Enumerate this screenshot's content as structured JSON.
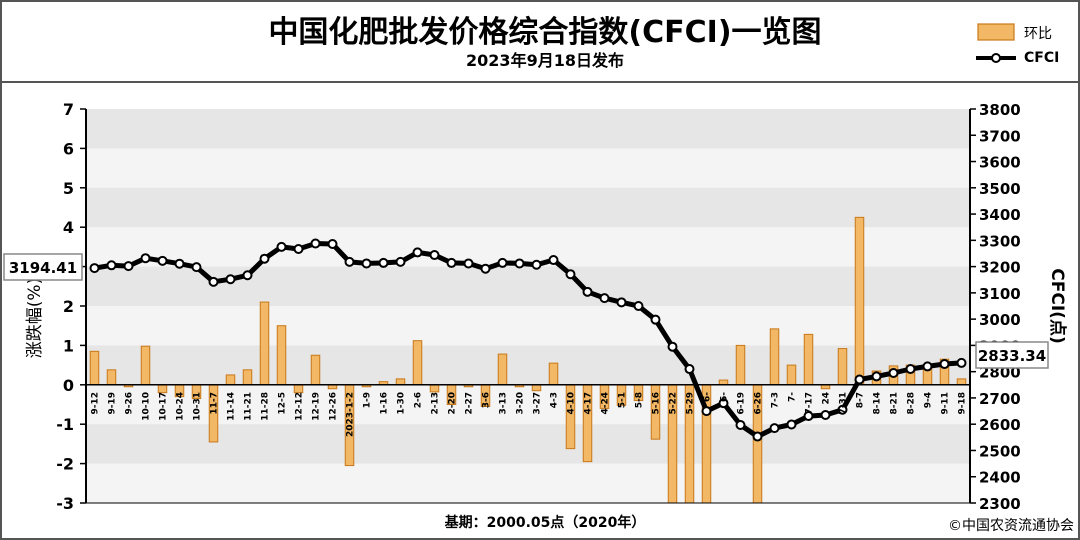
{
  "header": {
    "title": "中国化肥批发价格综合指数(CFCI)一览图",
    "subtitle": "2023年9月18日发布"
  },
  "footer": {
    "base_note": "基期：2000.05点（2020年）",
    "copyright": "©中国农资流通协会"
  },
  "legend": {
    "bar_label": "环比",
    "line_label": "CFCI"
  },
  "colors": {
    "bar_fill": "#f2b866",
    "bar_stroke": "#c87818",
    "line": "#000000",
    "plot_bg": "#e6e6e6",
    "band_light": "#f4f4f4"
  },
  "chart_data": {
    "type": "bar+line",
    "x": [
      "9-12",
      "9-19",
      "9-26",
      "10-10",
      "10-17",
      "10-24",
      "10-31",
      "11-7",
      "11-14",
      "11-21",
      "11-28",
      "12-5",
      "12-12",
      "12-19",
      "12-26",
      "2023-1-2",
      "1-9",
      "1-16",
      "1-30",
      "2-6",
      "2-13",
      "2-20",
      "2-27",
      "3-6",
      "3-13",
      "3-20",
      "3-27",
      "4-3",
      "4-10",
      "4-17",
      "4-24",
      "5-1",
      "5-8",
      "5-16",
      "5-22",
      "5-29",
      "6-5",
      "6-12",
      "6-19",
      "6-26",
      "7-3",
      "7-10",
      "7-17",
      "7-24",
      "7-31",
      "8-7",
      "8-14",
      "8-21",
      "8-28",
      "9-4",
      "9-11",
      "9-18"
    ],
    "x_tick_labels": [
      "9-12",
      "9-19",
      "9-26",
      "10-10",
      "10-17",
      "10-24",
      "10-31",
      "11-7",
      "11-14",
      "11-21",
      "11-28",
      "12-5",
      "12-12",
      "12-19",
      "12-26",
      "2023-1-2",
      "1-9",
      "1-16",
      "1-30",
      "2-6",
      "2-13",
      "2-20",
      "2-27",
      "3-6",
      "3-13",
      "3-20",
      "3-27",
      "4-3",
      "4-10",
      "4-17",
      "4-24",
      "5-1",
      "5-8",
      "5-16",
      "5-22",
      "5-29",
      "6-",
      "6-",
      "6-19",
      "6-26",
      "7-3",
      "7-",
      "7-17",
      "24",
      "7-31",
      "8-7",
      "8-14",
      "8-21",
      "8-28",
      "9-4",
      "9-11",
      "9-18"
    ],
    "series": [
      {
        "name": "环比",
        "type": "bar",
        "axis": "left",
        "values": [
          0.85,
          0.38,
          -0.05,
          0.98,
          -0.2,
          -0.3,
          -0.35,
          -1.45,
          0.25,
          0.38,
          2.1,
          1.5,
          -0.2,
          0.75,
          -0.1,
          -2.05,
          -0.05,
          0.08,
          0.15,
          1.12,
          -0.18,
          -0.5,
          -0.05,
          -0.55,
          0.78,
          -0.05,
          -0.15,
          0.55,
          -1.62,
          -1.95,
          -0.6,
          -0.52,
          -0.4,
          -1.38,
          -3,
          -3,
          -3,
          0.12,
          1.0,
          -3,
          1.42,
          0.5,
          1.28,
          -0.1,
          0.92,
          4.25,
          0.35,
          0.48,
          0.5,
          0.48,
          0.65,
          0.15
        ]
      },
      {
        "name": "CFCI",
        "type": "line",
        "axis": "right",
        "values": [
          3194.41,
          3205,
          3202,
          3232,
          3222,
          3211,
          3198,
          3142,
          3152,
          3167,
          3230,
          3275,
          3267,
          3288,
          3286,
          3218,
          3212,
          3214,
          3218,
          3254,
          3244,
          3214,
          3212,
          3192,
          3214,
          3212,
          3207,
          3225,
          3171,
          3104,
          3080,
          3064,
          3050,
          2998,
          2895,
          2810,
          2650,
          2680,
          2597,
          2553,
          2585,
          2599,
          2631,
          2635,
          2655,
          2770,
          2782,
          2795,
          2810,
          2820,
          2829,
          2833.34
        ]
      }
    ],
    "ylabel_left": "涨跌幅(%)",
    "ylabel_right": "CFCI(点)",
    "ylim_left": [
      -3,
      7
    ],
    "yticks_left": [
      -3,
      -2,
      -1,
      0,
      1,
      2,
      3,
      4,
      5,
      6,
      7
    ],
    "ylim_right": [
      2300,
      3800
    ],
    "yticks_right": [
      2300,
      2400,
      2500,
      2600,
      2700,
      2800,
      2900,
      3000,
      3100,
      3200,
      3300,
      3400,
      3500,
      3600,
      3700,
      3800
    ],
    "annotations": {
      "start_value": "3194.41",
      "end_value": "2833.34"
    },
    "legend_position": "top-right",
    "grid": "horizontal bands"
  }
}
